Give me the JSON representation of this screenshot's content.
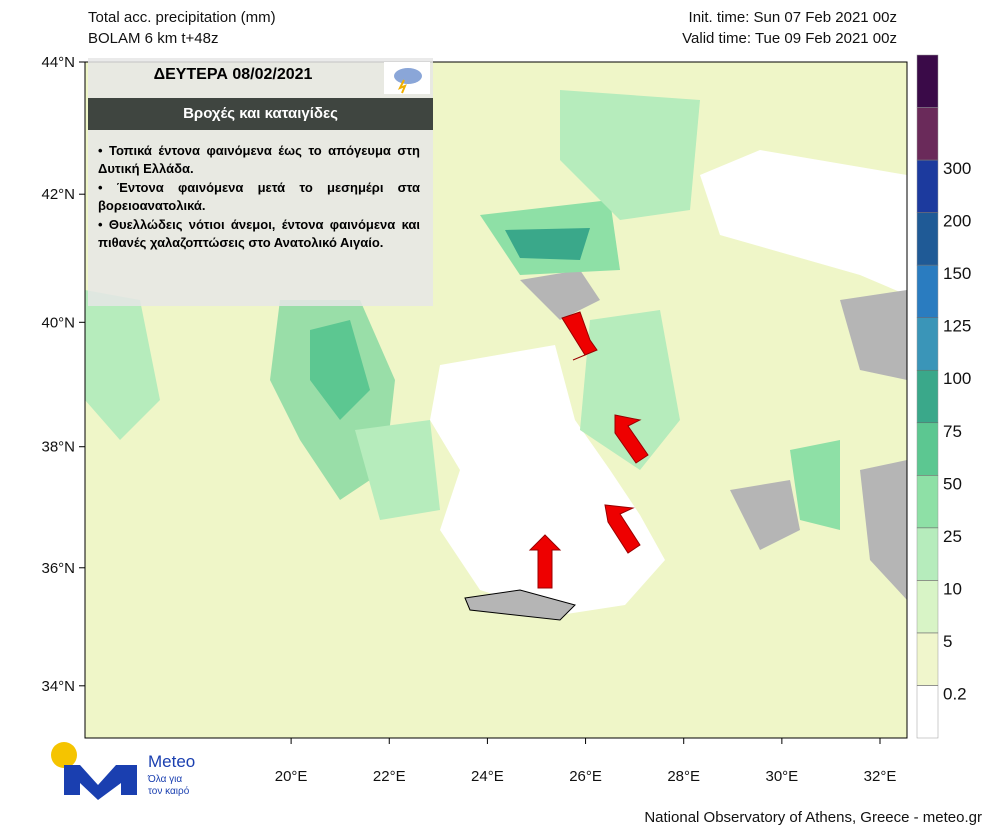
{
  "header": {
    "title": "Total acc. precipitation (mm)",
    "model": "BOLAM 6 km t+48z",
    "init_time": "Init. time: Sun 07 Feb 2021 00z",
    "valid_time": "Valid time: Tue 09 Feb 2021 00z"
  },
  "map": {
    "xlim": [
      15.8,
      32.55
    ],
    "ylim": [
      33.1,
      44
    ],
    "lat_ticks": [
      {
        "value": 44,
        "label": "44°N"
      },
      {
        "value": 42,
        "label": "42°N"
      },
      {
        "value": 40,
        "label": "40°N"
      },
      {
        "value": 38,
        "label": "38°N"
      },
      {
        "value": 36,
        "label": "36°N"
      },
      {
        "value": 34,
        "label": "34°N"
      }
    ],
    "lon_ticks": [
      {
        "value": 20,
        "label": "20°E"
      },
      {
        "value": 22,
        "label": "22°E"
      },
      {
        "value": 24,
        "label": "24°E"
      },
      {
        "value": 26,
        "label": "26°E"
      },
      {
        "value": 28,
        "label": "28°E"
      },
      {
        "value": 30,
        "label": "30°E"
      },
      {
        "value": 32,
        "label": "32°E"
      }
    ]
  },
  "colorbar": {
    "levels": [
      0.2,
      5,
      10,
      25,
      50,
      75,
      100,
      125,
      150,
      200,
      300
    ],
    "colors": [
      "#ffffff",
      "#f0f6cc",
      "#d8f4c6",
      "#b6ecbc",
      "#8ee0a6",
      "#5cc791",
      "#3aa88a",
      "#3a95b8",
      "#2a7cc0",
      "#1f5a96",
      "#1c3a9e",
      "#6a2a5a",
      "#3a0a48"
    ]
  },
  "forecast": {
    "day": "ΔΕΥΤΕΡΑ 08/02/2021",
    "headline": "Βροχές και καταιγίδες",
    "bullets": [
      "• Τοπικά έντονα φαινόμενα έως το απόγευμα στη Δυτική Ελλάδα.",
      "• Έντονα φαινόμενα μετά το μεσημέρι στα βορειοανατολικά.",
      "• Θυελλώδεις νότιοι άνεμοι, έντονα φαινόμενα και πιθανές χαλαζοπτώσεις στο Ανατολικό Αιγαίο."
    ]
  },
  "logo": {
    "name": "Meteo",
    "tagline_1": "Όλα για",
    "tagline_2": "τον καιρό"
  },
  "footer": "National Observatory of Athens, Greece - meteo.gr"
}
